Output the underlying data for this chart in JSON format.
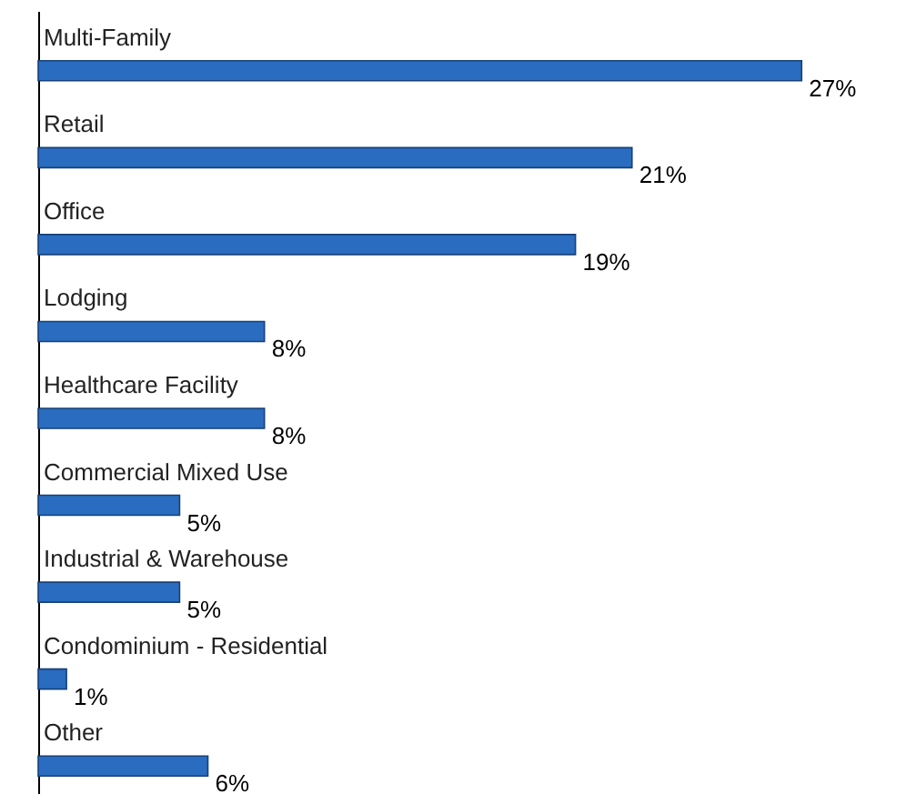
{
  "chart_data": {
    "type": "bar",
    "orientation": "horizontal",
    "categories": [
      "Multi-Family",
      "Retail",
      "Office",
      "Lodging",
      "Healthcare Facility",
      "Commercial Mixed Use",
      "Industrial & Warehouse",
      "Condominium - Residential",
      "Other"
    ],
    "values": [
      27,
      21,
      19,
      8,
      8,
      5,
      5,
      1,
      6
    ],
    "value_labels": [
      "27%",
      "21%",
      "19%",
      "8%",
      "8%",
      "5%",
      "5%",
      "1%",
      "6%"
    ],
    "color": "#2a6cbf"
  }
}
